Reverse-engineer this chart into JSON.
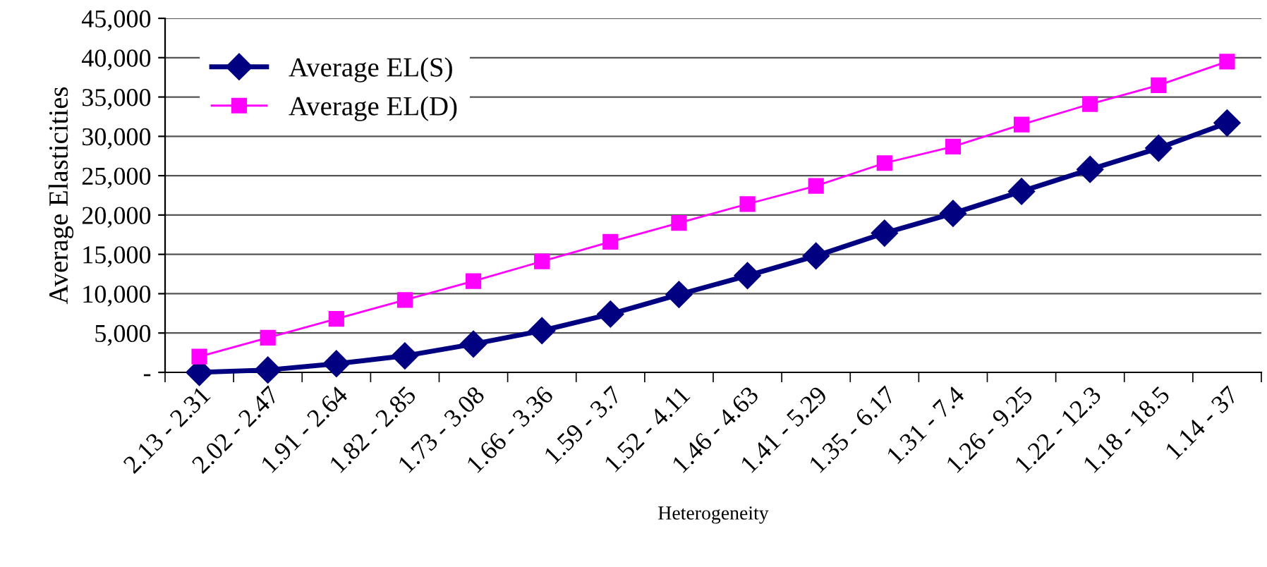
{
  "chart_data": {
    "type": "line",
    "xlabel": "Heterogeneity",
    "ylabel": "Average Elasticities",
    "categories": [
      "2.13 - 2.31",
      "2.02 - 2.47",
      "1.91 - 2.64",
      "1.82 - 2.85",
      "1.73 - 3.08",
      "1.66 - 3.36",
      "1.59 - 3.7",
      "1.52 - 4.11",
      "1.46 - 4.63",
      "1.41 - 5.29",
      "1.35 - 6.17",
      "1.31 - 7.4",
      "1.26 - 9.25",
      "1.22 - 12.3",
      "1.18 - 18.5",
      "1.14 - 37"
    ],
    "series": [
      {
        "name": "Average EL(S)",
        "color": "#000080",
        "marker": "diamond",
        "values": [
          0,
          300,
          1100,
          2100,
          3600,
          5300,
          7400,
          9900,
          12300,
          14800,
          17700,
          20200,
          23000,
          25800,
          28500,
          31700
        ]
      },
      {
        "name": "Average EL(D)",
        "color": "#ff00ff",
        "marker": "square",
        "values": [
          2000,
          4400,
          6800,
          9200,
          11600,
          14100,
          16600,
          19000,
          21400,
          23700,
          26600,
          28700,
          31500,
          34100,
          36500,
          39500
        ]
      }
    ],
    "ylim": [
      0,
      45000
    ],
    "yticks": [
      {
        "value": 0,
        "label": "-"
      },
      {
        "value": 5000,
        "label": "5,000"
      },
      {
        "value": 10000,
        "label": "10,000"
      },
      {
        "value": 15000,
        "label": "15,000"
      },
      {
        "value": 20000,
        "label": "20,000"
      },
      {
        "value": 25000,
        "label": "25,000"
      },
      {
        "value": 30000,
        "label": "30,000"
      },
      {
        "value": 35000,
        "label": "35,000"
      },
      {
        "value": 40000,
        "label": "40,000"
      },
      {
        "value": 45000,
        "label": "45,000"
      }
    ],
    "grid": "y",
    "legend": "top left",
    "line_style": "solid"
  }
}
